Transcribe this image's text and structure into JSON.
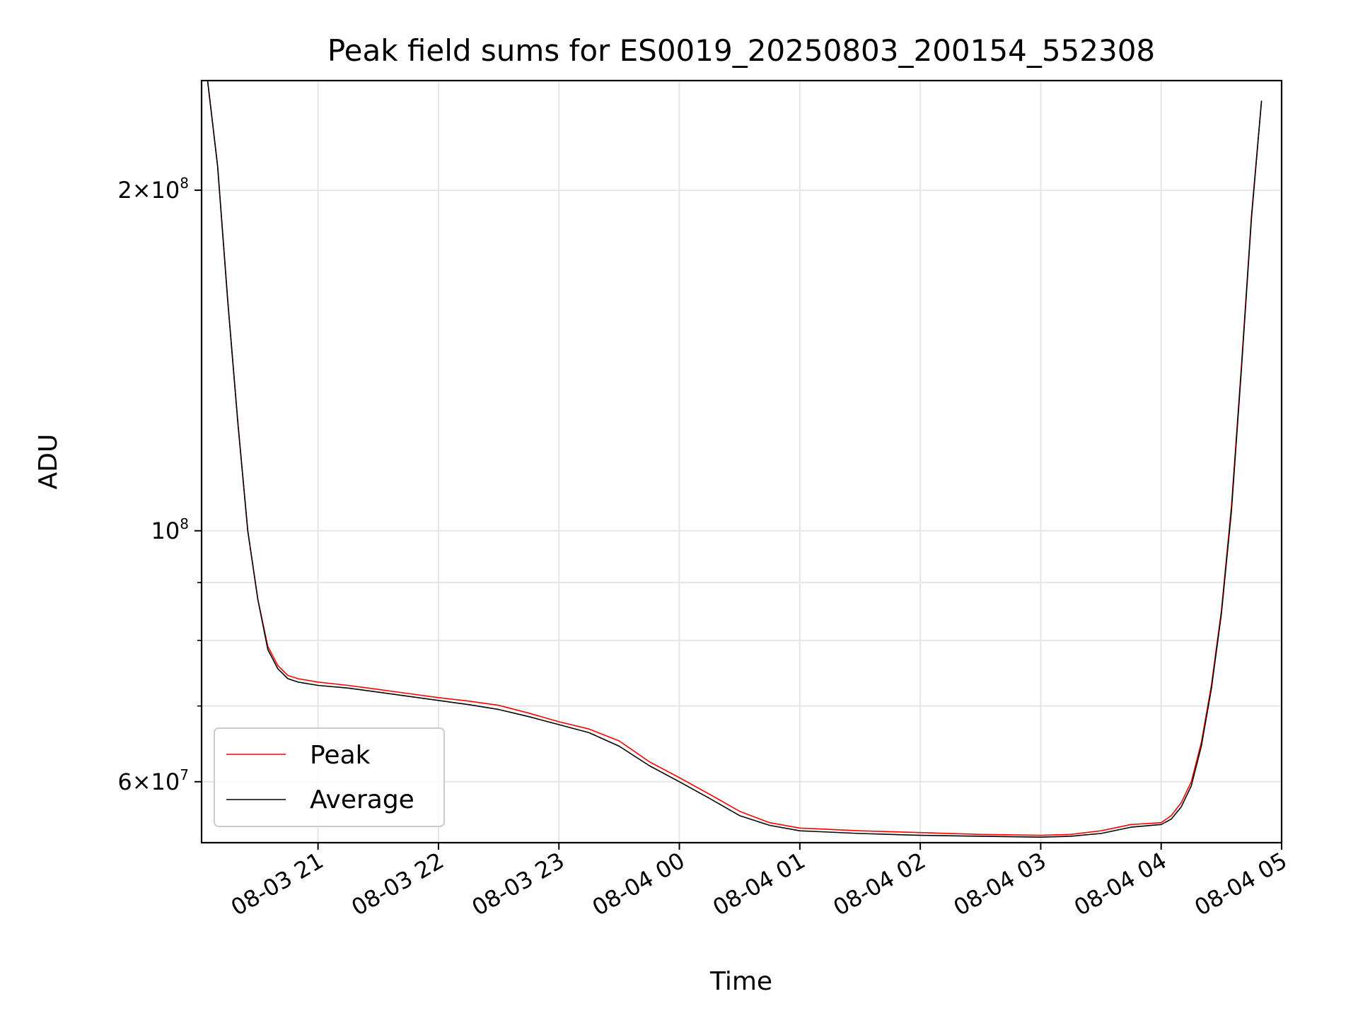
{
  "chart_data": {
    "type": "line",
    "title": "Peak field sums for ES0019_20250803_200154_552308",
    "xlabel": "Time",
    "ylabel": "ADU",
    "yscale": "log",
    "ylim": [
      53000000,
      250000000
    ],
    "xlim": [
      "2025-08-03 20:02",
      "2025-08-04 05:00"
    ],
    "grid": true,
    "legend_position": "lower-left",
    "x_tick_labels": [
      "08-03 21",
      "08-03 22",
      "08-03 23",
      "08-04 00",
      "08-04 01",
      "08-04 02",
      "08-04 03",
      "08-04 04",
      "08-04 05"
    ],
    "x_ticks": [
      "2025-08-03 21:00",
      "2025-08-03 22:00",
      "2025-08-03 23:00",
      "2025-08-04 00:00",
      "2025-08-04 01:00",
      "2025-08-04 02:00",
      "2025-08-04 03:00",
      "2025-08-04 04:00",
      "2025-08-04 05:00"
    ],
    "y_tick_labels": [
      {
        "value": 200000000,
        "mantissa": "2",
        "exp": "8"
      },
      {
        "value": 100000000,
        "mantissa": "",
        "exp": "8"
      },
      {
        "value": 60000000,
        "mantissa": "6",
        "exp": "7"
      }
    ],
    "y_minor_ticks": [
      70000000,
      80000000,
      90000000
    ],
    "x": [
      "2025-08-03 20:05",
      "2025-08-03 20:10",
      "2025-08-03 20:15",
      "2025-08-03 20:20",
      "2025-08-03 20:25",
      "2025-08-03 20:30",
      "2025-08-03 20:35",
      "2025-08-03 20:40",
      "2025-08-03 20:45",
      "2025-08-03 20:50",
      "2025-08-03 21:00",
      "2025-08-03 21:15",
      "2025-08-03 21:30",
      "2025-08-03 21:45",
      "2025-08-03 22:00",
      "2025-08-03 22:15",
      "2025-08-03 22:30",
      "2025-08-03 22:45",
      "2025-08-03 23:00",
      "2025-08-03 23:15",
      "2025-08-03 23:30",
      "2025-08-03 23:45",
      "2025-08-04 00:00",
      "2025-08-04 00:15",
      "2025-08-04 00:30",
      "2025-08-04 00:45",
      "2025-08-04 01:00",
      "2025-08-04 01:30",
      "2025-08-04 02:00",
      "2025-08-04 02:30",
      "2025-08-04 03:00",
      "2025-08-04 03:15",
      "2025-08-04 03:30",
      "2025-08-04 03:45",
      "2025-08-04 04:00",
      "2025-08-04 04:05",
      "2025-08-04 04:10",
      "2025-08-04 04:15",
      "2025-08-04 04:20",
      "2025-08-04 04:25",
      "2025-08-04 04:30",
      "2025-08-04 04:35",
      "2025-08-04 04:40",
      "2025-08-04 04:45",
      "2025-08-04 04:50"
    ],
    "series": [
      {
        "name": "Peak",
        "color": "#ff0000",
        "values": [
          250000000,
          210000000,
          160000000,
          125000000,
          100000000,
          87000000,
          79000000,
          76000000,
          74500000,
          74000000,
          73500000,
          73000000,
          72400000,
          71800000,
          71200000,
          70700000,
          70100000,
          69000000,
          67800000,
          66800000,
          65200000,
          62500000,
          60500000,
          58500000,
          56500000,
          55200000,
          54600000,
          54300000,
          54100000,
          53900000,
          53800000,
          53900000,
          54300000,
          55000000,
          55200000,
          56000000,
          57500000,
          60000000,
          65000000,
          73000000,
          85000000,
          105000000,
          140000000,
          190000000,
          240000000
        ]
      },
      {
        "name": "Average",
        "color": "#000000",
        "values": [
          250000000,
          210000000,
          160000000,
          125000000,
          100000000,
          87000000,
          78500000,
          75500000,
          74000000,
          73500000,
          73000000,
          72600000,
          72000000,
          71400000,
          70800000,
          70200000,
          69500000,
          68500000,
          67400000,
          66300000,
          64500000,
          62000000,
          60000000,
          58000000,
          56000000,
          54900000,
          54300000,
          54000000,
          53800000,
          53700000,
          53600000,
          53700000,
          54000000,
          54700000,
          55000000,
          55600000,
          57000000,
          59500000,
          64500000,
          72500000,
          84500000,
          104000000,
          139000000,
          189000000,
          240000000
        ]
      }
    ]
  }
}
